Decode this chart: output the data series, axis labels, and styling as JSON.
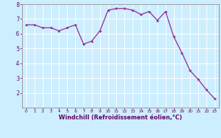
{
  "x": [
    0,
    1,
    2,
    3,
    4,
    5,
    6,
    7,
    8,
    9,
    10,
    11,
    12,
    13,
    14,
    15,
    16,
    17,
    18,
    19,
    20,
    21,
    22,
    23
  ],
  "y": [
    6.6,
    6.6,
    6.4,
    6.4,
    6.2,
    6.4,
    6.6,
    5.3,
    5.5,
    6.2,
    7.6,
    7.7,
    7.7,
    7.6,
    7.3,
    7.5,
    6.9,
    7.5,
    5.8,
    4.7,
    3.5,
    2.9,
    2.2,
    1.6
  ],
  "line_color": "#993399",
  "marker": "D",
  "marker_size": 1.8,
  "bg_color": "#cceeff",
  "grid_color": "#ffffff",
  "xlabel": "Windchill (Refroidissement éolien,°C)",
  "xlabel_color": "#660066",
  "tick_color": "#660066",
  "ylim": [
    1.0,
    8.0
  ],
  "xlim": [
    -0.5,
    23.5
  ],
  "yticks": [
    2,
    3,
    4,
    5,
    6,
    7,
    8
  ],
  "xticks": [
    0,
    1,
    2,
    3,
    4,
    5,
    6,
    7,
    8,
    9,
    10,
    11,
    12,
    13,
    14,
    15,
    16,
    17,
    18,
    19,
    20,
    21,
    22,
    23
  ],
  "linewidth": 1.0,
  "axis_color": "#888888"
}
